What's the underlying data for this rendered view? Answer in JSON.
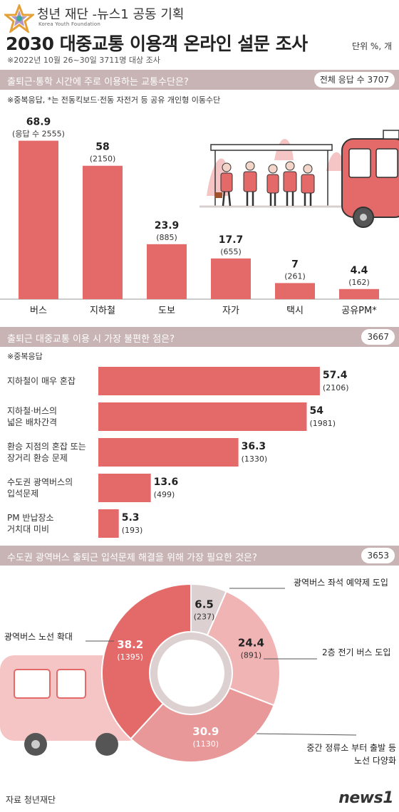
{
  "header": {
    "org_name": "청년 재단 -뉴스1 공동 기획",
    "org_name_en": "Korea Youth Foundation",
    "title": "2030 대중교통 이용객 온라인 설문 조사",
    "unit": "단위 %, 개",
    "subtitle": "※2022년 10월 26~30일 3711명 대상 조사"
  },
  "colors": {
    "bar": "#e46a6a",
    "question_bar": "#c8b4b4",
    "accent_light": "#f5c4c4",
    "donut_light": "#ddd0d0"
  },
  "section1": {
    "question": "출퇴근·통학 시간에 주로 이용하는 교통수단은?",
    "badge": "전체 응답 수 3707",
    "note": "※중복응답, *는 전동킥보드·전동 자전거 등 공유 개인형 이동수단",
    "first_count_prefix": "(응답 수 2555)"
  },
  "section2": {
    "question": "출퇴근 대중교통 이용 시 가장 불편한 점은?",
    "badge": "3667",
    "note": "※중복응답"
  },
  "section3": {
    "question": "수도권 광역버스 출퇴근 입석문제 해결을 위해 가장 필요한 것은?",
    "badge": "3653"
  },
  "footer": {
    "source": "자료 청년재단",
    "brand": "news1"
  },
  "chart_data": [
    {
      "type": "bar",
      "categories": [
        "버스",
        "지하철",
        "도보",
        "자가",
        "택시",
        "공유PM*"
      ],
      "values": [
        68.9,
        58,
        23.9,
        17.7,
        7,
        4.4
      ],
      "counts": [
        "응답 수 2555",
        "2150",
        "885",
        "655",
        "261",
        "162"
      ],
      "value_labels": [
        "68.9",
        "58",
        "23.9",
        "17.7",
        "7",
        "4.4"
      ],
      "ylim": [
        0,
        70
      ]
    },
    {
      "type": "bar",
      "orientation": "horizontal",
      "categories": [
        "지하철이 매우 혼잡",
        "지하철·버스의 넓은 배차간격",
        "환승 지점의 혼잡 또는 장거리 환승 문제",
        "수도권 광역버스의 입석문제",
        "PM 반납장소 거치대 미비"
      ],
      "category_lines": [
        [
          "지하철이 매우 혼잡"
        ],
        [
          "지하철·버스의",
          "넓은 배차간격"
        ],
        [
          "환승 지점의 혼잡 또는",
          "장거리 환승 문제"
        ],
        [
          "수도권 광역버스의",
          "입석문제"
        ],
        [
          "PM 반납장소",
          "거치대 미비"
        ]
      ],
      "values": [
        57.4,
        54,
        36.3,
        13.6,
        5.3
      ],
      "value_labels": [
        "57.4",
        "54",
        "36.3",
        "13.6",
        "5.3"
      ],
      "counts": [
        "2106",
        "1981",
        "1330",
        "499",
        "193"
      ],
      "xlim": [
        0,
        60
      ]
    },
    {
      "type": "pie",
      "donut": true,
      "labels": [
        "광역버스 좌석 예약제 도입",
        "2층 전기 버스 도입",
        "중간 정류소 부터 출발 등 노선 다양화",
        "광역버스 노선 확대"
      ],
      "label_lines": [
        [
          "광역버스 좌석  예약제 도입"
        ],
        [
          "2층 전기 버스 도입"
        ],
        [
          "중간 정류소 부터 출발 등",
          "노선 다양화"
        ],
        [
          "광역버스 노선 확대"
        ]
      ],
      "values": [
        6.5,
        24.4,
        30.9,
        38.2
      ],
      "value_labels": [
        "6.5",
        "24.4",
        "30.9",
        "38.2"
      ],
      "counts": [
        "237",
        "891",
        "1130",
        "1395"
      ],
      "colors": [
        "#ddd0d0",
        "#f0b4b4",
        "#e89898",
        "#e46a6a"
      ]
    }
  ]
}
